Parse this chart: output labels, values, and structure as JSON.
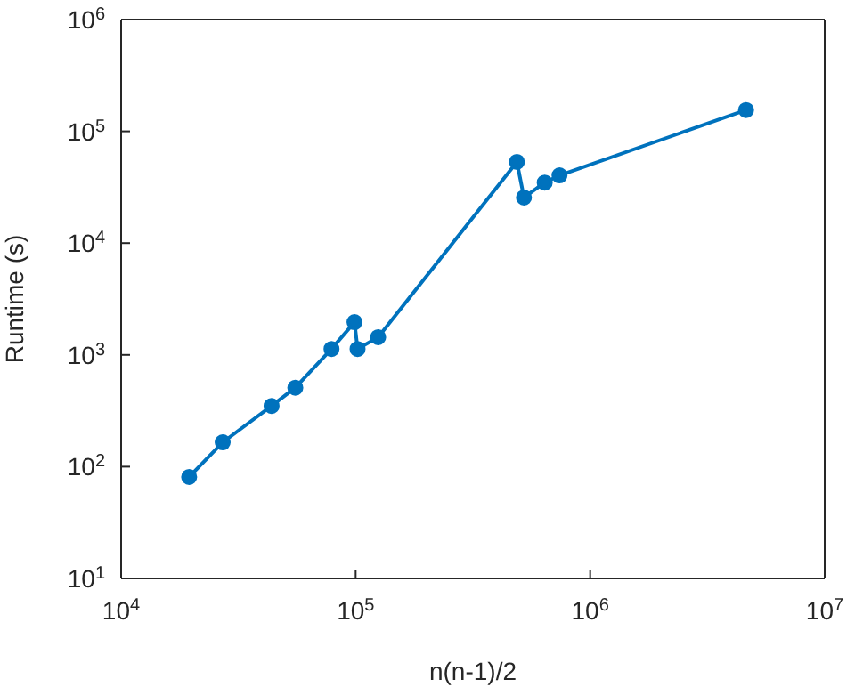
{
  "chart_data": {
    "type": "line",
    "xlabel": "n(n-1)/2",
    "ylabel": "Runtime (s)",
    "x": [
      19500,
      27100,
      43800,
      55300,
      78900,
      98900,
      101900,
      124700,
      487000,
      522000,
      640000,
      740000,
      4620000
    ],
    "series": [
      {
        "color": "#0072bd",
        "values": [
          81,
          165,
          349,
          509,
          1130,
          1960,
          1130,
          1440,
          53300,
          25600,
          34800,
          40400,
          155000
        ]
      }
    ],
    "log": "xy",
    "marker": "circle",
    "line_style": "solid",
    "grid": false,
    "legend": false,
    "xlim": [
      10000,
      10000000
    ],
    "ylim": [
      10,
      1000000
    ],
    "xticks": [
      {
        "value": 10000,
        "label": "10$^{4}$"
      },
      {
        "value": 100000,
        "label": "10$^{5}$"
      },
      {
        "value": 1000000,
        "label": "10$^{6}$"
      },
      {
        "value": 10000000,
        "label": "10$^{7}$"
      }
    ],
    "yticks": [
      {
        "value": 10,
        "label": "10$^{1}$"
      },
      {
        "value": 100,
        "label": "10$^{2}$"
      },
      {
        "value": 1000,
        "label": "10$^{3}$"
      },
      {
        "value": 10000,
        "label": "10$^{4}$"
      },
      {
        "value": 100000,
        "label": "10$^{5}$"
      },
      {
        "value": 1000000,
        "label": "10$^{6}$"
      }
    ]
  }
}
